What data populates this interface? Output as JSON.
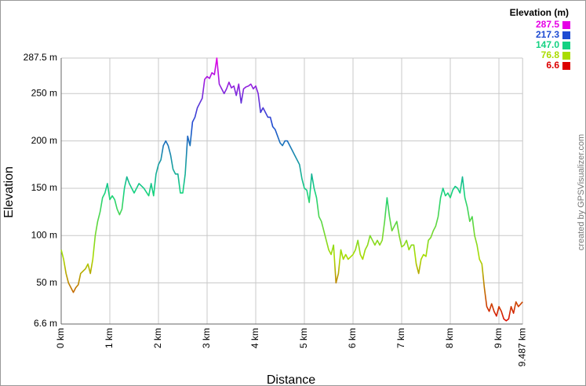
{
  "chart_data": {
    "type": "line",
    "x_label": "Distance",
    "y_label": "Elevation",
    "credit": "created by GPSVisualizer.com",
    "legend": {
      "title": "Elevation (m)",
      "entries": [
        {
          "value": 287.5,
          "label": "287.5",
          "color": "#e600e6"
        },
        {
          "value": 217.3,
          "label": "217.3",
          "color": "#1e4cd2"
        },
        {
          "value": 147.0,
          "label": "147.0",
          "color": "#14d282"
        },
        {
          "value": 76.8,
          "label": "76.8",
          "color": "#aadc00"
        },
        {
          "value": 6.6,
          "label": "6.6",
          "color": "#dc0000"
        }
      ]
    },
    "xlim": [
      0,
      9.487
    ],
    "ylim": [
      6.6,
      287.5
    ],
    "grid": true,
    "xticks": [
      {
        "value": 0,
        "label": "0 km"
      },
      {
        "value": 1,
        "label": "1 km"
      },
      {
        "value": 2,
        "label": "2 km"
      },
      {
        "value": 3,
        "label": "3 km"
      },
      {
        "value": 4,
        "label": "4 km"
      },
      {
        "value": 5,
        "label": "5 km"
      },
      {
        "value": 6,
        "label": "6 km"
      },
      {
        "value": 7,
        "label": "7 km"
      },
      {
        "value": 8,
        "label": "8 km"
      },
      {
        "value": 9,
        "label": "9 km"
      },
      {
        "value": 9.487,
        "label": "9.487 km"
      }
    ],
    "yticks": [
      {
        "value": 6.6,
        "label": "6.6 m"
      },
      {
        "value": 50,
        "label": "50 m"
      },
      {
        "value": 100,
        "label": "100 m"
      },
      {
        "value": 150,
        "label": "150 m"
      },
      {
        "value": 200,
        "label": "200 m"
      },
      {
        "value": 250,
        "label": "250 m"
      },
      {
        "value": 287.5,
        "label": "287.5 m"
      }
    ],
    "x": [
      0,
      0.05,
      0.1,
      0.15,
      0.2,
      0.25,
      0.3,
      0.35,
      0.4,
      0.5,
      0.55,
      0.6,
      0.65,
      0.7,
      0.75,
      0.8,
      0.85,
      0.9,
      0.95,
      1.0,
      1.05,
      1.1,
      1.15,
      1.2,
      1.25,
      1.3,
      1.35,
      1.4,
      1.5,
      1.6,
      1.7,
      1.8,
      1.85,
      1.9,
      1.95,
      2.0,
      2.05,
      2.1,
      2.15,
      2.2,
      2.25,
      2.3,
      2.35,
      2.4,
      2.45,
      2.5,
      2.55,
      2.6,
      2.65,
      2.7,
      2.75,
      2.8,
      2.85,
      2.9,
      2.95,
      3.0,
      3.05,
      3.1,
      3.15,
      3.2,
      3.25,
      3.3,
      3.35,
      3.4,
      3.45,
      3.5,
      3.55,
      3.6,
      3.65,
      3.7,
      3.75,
      3.8,
      3.85,
      3.9,
      3.95,
      4.0,
      4.05,
      4.1,
      4.15,
      4.2,
      4.25,
      4.3,
      4.35,
      4.4,
      4.45,
      4.5,
      4.55,
      4.6,
      4.65,
      4.7,
      4.75,
      4.8,
      4.85,
      4.9,
      4.95,
      5.0,
      5.05,
      5.1,
      5.15,
      5.2,
      5.25,
      5.3,
      5.35,
      5.4,
      5.45,
      5.5,
      5.55,
      5.6,
      5.65,
      5.7,
      5.75,
      5.8,
      5.85,
      5.9,
      6.0,
      6.05,
      6.1,
      6.15,
      6.2,
      6.25,
      6.3,
      6.35,
      6.4,
      6.45,
      6.5,
      6.55,
      6.6,
      6.65,
      6.7,
      6.75,
      6.8,
      6.85,
      6.9,
      6.95,
      7.0,
      7.05,
      7.1,
      7.15,
      7.2,
      7.25,
      7.3,
      7.35,
      7.4,
      7.45,
      7.5,
      7.55,
      7.6,
      7.65,
      7.7,
      7.75,
      7.8,
      7.85,
      7.9,
      7.95,
      8.0,
      8.05,
      8.1,
      8.15,
      8.2,
      8.25,
      8.3,
      8.35,
      8.4,
      8.45,
      8.5,
      8.55,
      8.6,
      8.65,
      8.7,
      8.75,
      8.8,
      8.85,
      8.9,
      8.95,
      9.0,
      9.05,
      9.1,
      9.15,
      9.2,
      9.25,
      9.3,
      9.35,
      9.4,
      9.487
    ],
    "series": [
      {
        "name": "Elevation",
        "values": [
          85,
          75,
          60,
          50,
          45,
          40,
          45,
          48,
          60,
          65,
          70,
          60,
          75,
          100,
          115,
          125,
          140,
          145,
          155,
          138,
          142,
          138,
          128,
          122,
          128,
          150,
          162,
          155,
          145,
          155,
          150,
          142,
          155,
          142,
          165,
          175,
          180,
          195,
          200,
          195,
          185,
          170,
          165,
          165,
          145,
          145,
          165,
          205,
          195,
          220,
          225,
          235,
          240,
          245,
          265,
          268,
          266,
          272,
          270,
          287.5,
          260,
          255,
          250,
          255,
          262,
          256,
          258,
          248,
          260,
          240,
          255,
          257,
          258,
          260,
          255,
          258,
          250,
          230,
          235,
          230,
          225,
          225,
          215,
          212,
          205,
          198,
          195,
          200,
          200,
          195,
          190,
          185,
          180,
          175,
          160,
          150,
          148,
          135,
          165,
          150,
          140,
          120,
          115,
          105,
          95,
          85,
          80,
          90,
          50,
          60,
          85,
          75,
          80,
          75,
          80,
          85,
          95,
          80,
          75,
          85,
          90,
          100,
          95,
          90,
          95,
          90,
          95,
          115,
          140,
          120,
          105,
          110,
          115,
          100,
          88,
          90,
          95,
          85,
          90,
          90,
          70,
          60,
          75,
          80,
          78,
          95,
          98,
          105,
          110,
          120,
          140,
          150,
          142,
          145,
          140,
          148,
          152,
          150,
          145,
          162,
          140,
          130,
          115,
          120,
          100,
          90,
          75,
          70,
          45,
          25,
          20,
          28,
          20,
          15,
          25,
          20,
          12,
          10,
          12,
          25,
          18,
          30,
          25,
          30
        ]
      }
    ]
  }
}
